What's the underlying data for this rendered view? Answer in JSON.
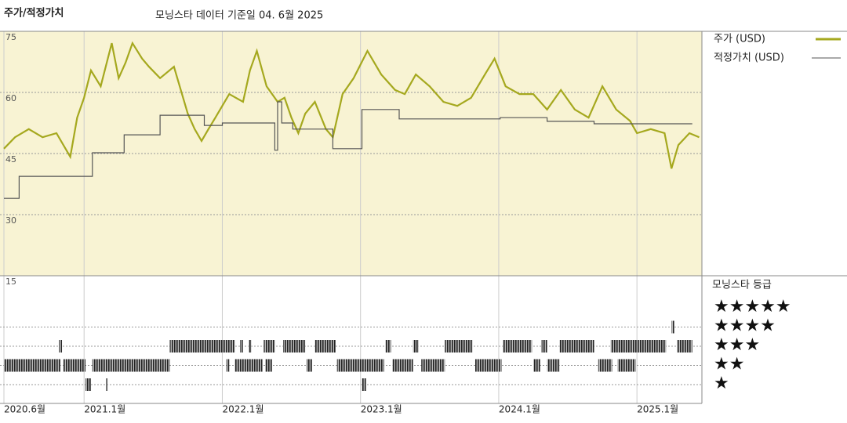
{
  "chart_data": {
    "type": "line",
    "title": "주가/적정가치",
    "subtitle": "모닝스타 데이터 기준일 04. 6월 2025",
    "xlim": [
      2020.42,
      2025.47
    ],
    "xticks": [
      {
        "value": 2020.42,
        "label": "2020.6월"
      },
      {
        "value": 2021,
        "label": "2021.1월"
      },
      {
        "value": 2022,
        "label": "2022.1월"
      },
      {
        "value": 2023,
        "label": "2023.1월"
      },
      {
        "value": 2024,
        "label": "2024.1월"
      },
      {
        "value": 2025,
        "label": "2025.1월"
      }
    ],
    "ylim": [
      15,
      75
    ],
    "yticks": [
      75,
      60,
      45,
      30,
      15
    ],
    "grid": true,
    "background": "#f8f3d3",
    "series": [
      {
        "name": "주가 (USD)",
        "color": "#a5a81e",
        "x": [
          2020.42,
          2020.5,
          2020.6,
          2020.7,
          2020.8,
          2020.9,
          2020.95,
          2021.0,
          2021.05,
          2021.12,
          2021.2,
          2021.25,
          2021.3,
          2021.35,
          2021.42,
          2021.47,
          2021.55,
          2021.65,
          2021.75,
          2021.8,
          2021.85,
          2021.9,
          2021.95,
          2022.05,
          2022.15,
          2022.2,
          2022.25,
          2022.32,
          2022.4,
          2022.45,
          2022.5,
          2022.55,
          2022.6,
          2022.67,
          2022.75,
          2022.8,
          2022.87,
          2022.95,
          2023.05,
          2023.15,
          2023.25,
          2023.32,
          2023.4,
          2023.5,
          2023.6,
          2023.7,
          2023.8,
          2023.9,
          2023.97,
          2024.05,
          2024.15,
          2024.25,
          2024.35,
          2024.45,
          2024.55,
          2024.65,
          2024.75,
          2024.85,
          2024.95,
          2025.0,
          2025.1,
          2025.2,
          2025.25,
          2025.3,
          2025.38,
          2025.45
        ],
        "values": [
          46.2,
          49,
          51,
          49,
          50,
          44.2,
          53.8,
          58.7,
          65.4,
          61.5,
          72.1,
          63.5,
          67.3,
          72.1,
          68.3,
          66.3,
          63.5,
          66.3,
          54.8,
          51,
          48.1,
          51,
          53.8,
          59.6,
          57.7,
          65.4,
          70.2,
          61.5,
          57.7,
          58.7,
          53.8,
          50,
          54.8,
          57.7,
          51,
          49,
          59.6,
          63.5,
          70.2,
          64.4,
          60.6,
          59.6,
          64.4,
          61.5,
          57.7,
          56.7,
          58.7,
          64.4,
          68.3,
          61.5,
          59.6,
          59.6,
          55.8,
          60.6,
          55.8,
          53.8,
          61.5,
          55.8,
          53,
          50,
          51,
          50,
          41.3,
          47.1,
          50,
          49
        ]
      },
      {
        "name": "적정가치 (USD)",
        "color": "#555555",
        "x": [
          2020.42,
          2020.53,
          2020.53,
          2021.06,
          2021.06,
          2021.29,
          2021.29,
          2021.55,
          2021.55,
          2021.87,
          2021.87,
          2022.0,
          2022.0,
          2022.38,
          2022.38,
          2022.4,
          2022.4,
          2022.43,
          2022.43,
          2022.51,
          2022.51,
          2022.8,
          2022.8,
          2023.01,
          2023.01,
          2023.28,
          2023.28,
          2024.01,
          2024.01,
          2024.35,
          2024.35,
          2024.69,
          2024.69,
          2025.4
        ],
        "values": [
          34,
          34,
          39.4,
          39.4,
          45.2,
          45.2,
          49.6,
          49.6,
          54.4,
          54.4,
          51.9,
          51.9,
          52.5,
          52.5,
          45.8,
          45.8,
          57.7,
          57.7,
          52.5,
          52.5,
          51,
          51,
          46.2,
          46.2,
          55.8,
          55.8,
          53.5,
          53.5,
          53.8,
          53.8,
          52.9,
          52.9,
          52.3,
          52.3
        ]
      }
    ],
    "rating": {
      "title": "모닝스타 등급",
      "levels": [
        5,
        4,
        3,
        2,
        1
      ],
      "labels": [
        "★★★★★",
        "★★★★",
        "★★★",
        "★★",
        "★"
      ],
      "grid": [
        4,
        3,
        2,
        1
      ],
      "color": "#222222",
      "periods": [
        {
          "from": 2020.42,
          "to": 2020.83,
          "stars": 2
        },
        {
          "from": 2020.85,
          "to": 2021.01,
          "stars": 2
        },
        {
          "from": 2021.06,
          "to": 2021.62,
          "stars": 2
        },
        {
          "from": 2022.03,
          "to": 2022.05,
          "stars": 2
        },
        {
          "from": 2022.09,
          "to": 2022.29,
          "stars": 2
        },
        {
          "from": 2022.31,
          "to": 2022.36,
          "stars": 2
        },
        {
          "from": 2022.61,
          "to": 2022.65,
          "stars": 2
        },
        {
          "from": 2022.83,
          "to": 2023.17,
          "stars": 2
        },
        {
          "from": 2023.23,
          "to": 2023.38,
          "stars": 2
        },
        {
          "from": 2023.44,
          "to": 2023.61,
          "stars": 2
        },
        {
          "from": 2023.83,
          "to": 2024.02,
          "stars": 2
        },
        {
          "from": 2024.25,
          "to": 2024.3,
          "stars": 2
        },
        {
          "from": 2024.35,
          "to": 2024.44,
          "stars": 2
        },
        {
          "from": 2024.72,
          "to": 2024.82,
          "stars": 2
        },
        {
          "from": 2024.86,
          "to": 2024.99,
          "stars": 2
        },
        {
          "from": 2020.82,
          "to": 2020.84,
          "stars": 3
        },
        {
          "from": 2021.62,
          "to": 2022.09,
          "stars": 3
        },
        {
          "from": 2022.13,
          "to": 2022.15,
          "stars": 3
        },
        {
          "from": 2022.19,
          "to": 2022.21,
          "stars": 3
        },
        {
          "from": 2022.3,
          "to": 2022.38,
          "stars": 3
        },
        {
          "from": 2022.44,
          "to": 2022.6,
          "stars": 3
        },
        {
          "from": 2022.67,
          "to": 2022.82,
          "stars": 3
        },
        {
          "from": 2023.18,
          "to": 2023.22,
          "stars": 3
        },
        {
          "from": 2023.38,
          "to": 2023.42,
          "stars": 3
        },
        {
          "from": 2023.61,
          "to": 2023.81,
          "stars": 3
        },
        {
          "from": 2024.03,
          "to": 2024.24,
          "stars": 3
        },
        {
          "from": 2024.31,
          "to": 2024.35,
          "stars": 3
        },
        {
          "from": 2024.44,
          "to": 2024.69,
          "stars": 3
        },
        {
          "from": 2024.81,
          "to": 2025.21,
          "stars": 3
        },
        {
          "from": 2025.29,
          "to": 2025.4,
          "stars": 3
        },
        {
          "from": 2025.25,
          "to": 2025.27,
          "stars": 4
        },
        {
          "from": 2021.01,
          "to": 2021.05,
          "stars": 1
        },
        {
          "from": 2021.16,
          "to": 2021.17,
          "stars": 1
        },
        {
          "from": 2023.01,
          "to": 2023.04,
          "stars": 1
        }
      ]
    }
  }
}
